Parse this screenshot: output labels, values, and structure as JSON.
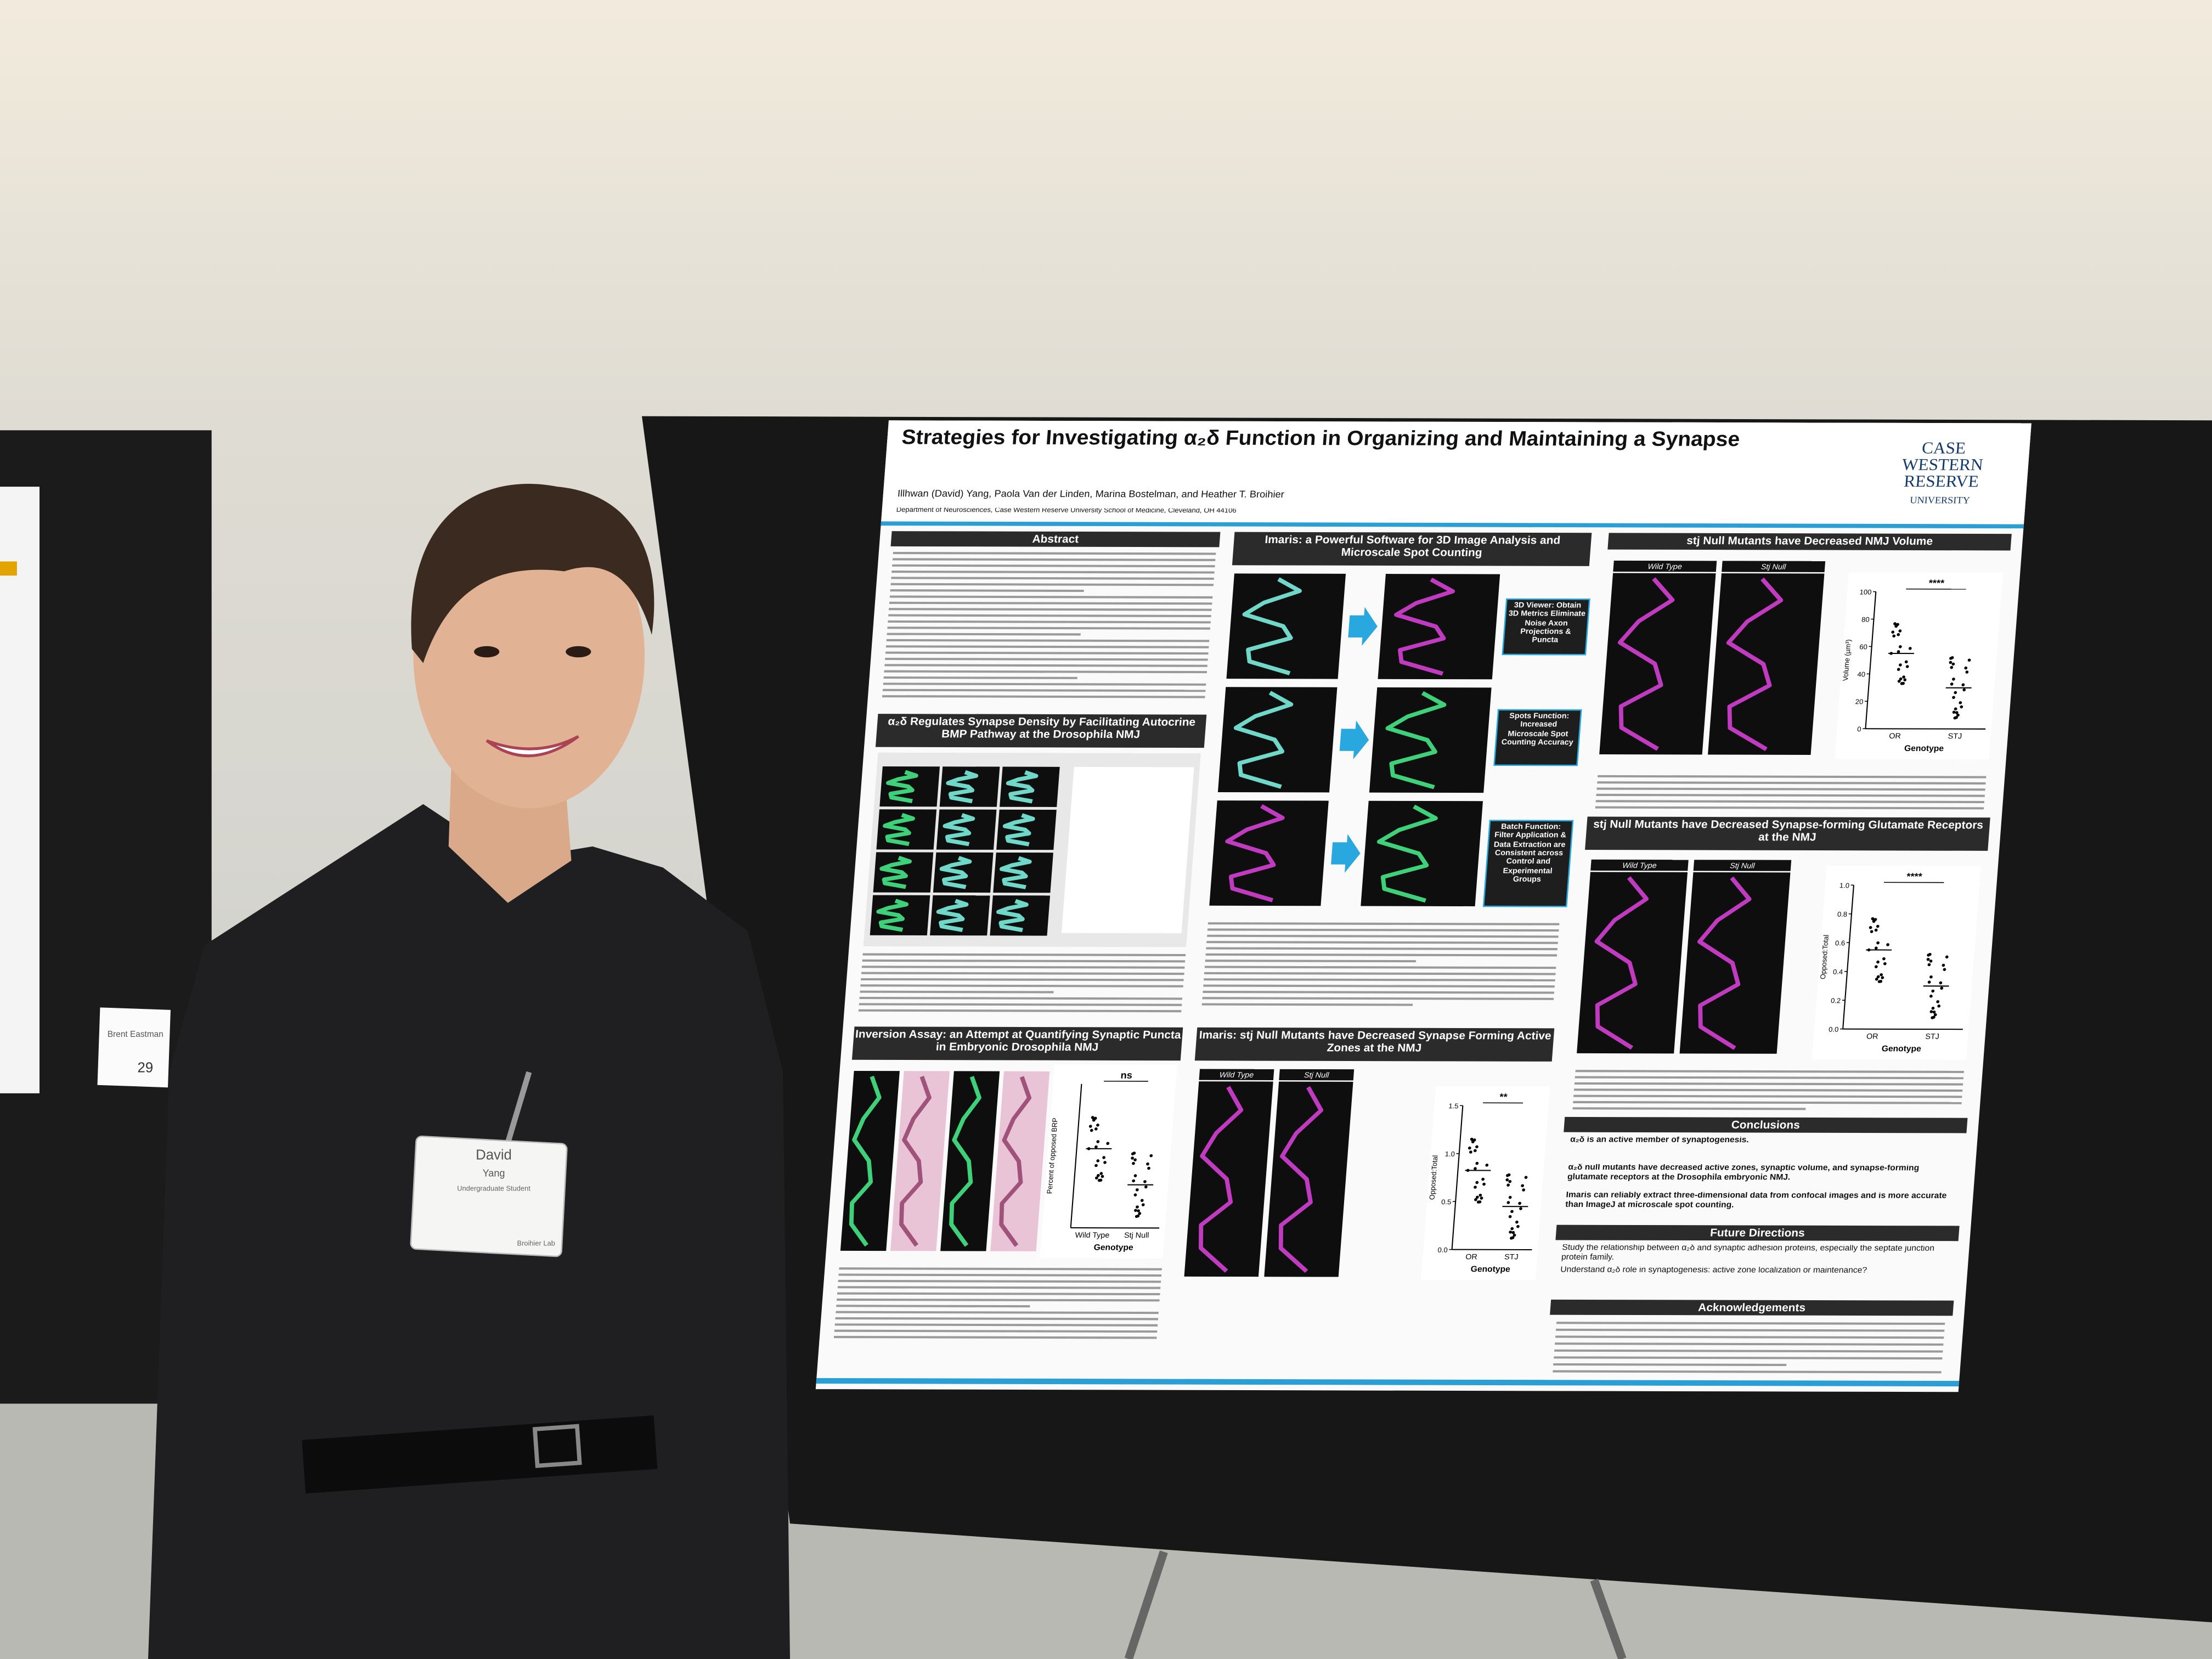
{
  "poster": {
    "title": "Strategies for Investigating α₂δ Function in Organizing and Maintaining a Synapse",
    "authors": "Illhwan (David) Yang, Paola Van der Linden, Marina Bostelman, and Heather T. Broihier",
    "affiliation": "Department of Neurosciences, Case Western Reserve University School of Medicine, Cleveland, OH 44106",
    "logo": [
      "CASE",
      "WESTERN",
      "RESERVE",
      "UNIVERSITY"
    ],
    "sections": {
      "abstract": "Abstract",
      "bmp": "α₂δ Regulates Synapse Density by Facilitating Autocrine BMP Pathway at the Drosophila NMJ",
      "imaris": "Imaris: a Powerful Software for 3D Image Analysis and Microscale Spot Counting",
      "volume": "stj Null Mutants have Decreased NMJ Volume",
      "glutamate": "stj Null Mutants have Decreased Synapse-forming Glutamate Receptors at the NMJ",
      "inversion": "Inversion Assay: an Attempt at Quantifying Synaptic Puncta in Embryonic Drosophila NMJ",
      "active_zones": "Imaris: stj Null Mutants have Decreased Synapse Forming Active Zones at the NMJ",
      "conclusions": "Conclusions",
      "future": "Future Directions",
      "acknowledgements": "Acknowledgements"
    },
    "callouts": [
      "3D Viewer: Obtain 3D Metrics Eliminate Noise Axon Projections & Puncta",
      "Spots Function: Increased Microscale Spot Counting Accuracy",
      "Batch Function: Filter Application & Data Extraction are Consistent across Control and Experimental Groups"
    ],
    "conclusions": [
      "α₂δ is an active member of synaptogenesis.",
      "α₂δ null mutants have decreased active zones, synaptic volume, and synapse-forming glutamate receptors at the Drosophila embryonic NMJ.",
      "Imaris can reliably extract three-dimensional data from confocal images and is more accurate than ImageJ at microscale spot counting."
    ],
    "future": [
      "Study the relationship between α₂δ and synaptic adhesion proteins, especially the septate junction protein family.",
      "Understand α₂δ role in synaptogenesis: active zone localization or maintenance?"
    ],
    "panel_labels": [
      "Wild Type",
      "Stj Null"
    ],
    "plots": {
      "volume": {
        "ylabel": "Volume (µm³)",
        "yticks": [
          "0",
          "20",
          "40",
          "60",
          "80",
          "100"
        ],
        "categories": [
          "OR",
          "STJ"
        ],
        "xlabel": "Genotype",
        "sig": "****"
      },
      "glutamate": {
        "ylabel": "Opposed:Total",
        "yticks": [
          "0.0",
          "0.2",
          "0.4",
          "0.6",
          "0.8",
          "1.0"
        ],
        "categories": [
          "OR",
          "STJ"
        ],
        "xlabel": "Genotype",
        "sig": "****"
      },
      "active_zones": {
        "ylabel": "Opposed:Total",
        "yticks": [
          "0.0",
          "0.5",
          "1.0",
          "1.5"
        ],
        "categories": [
          "OR",
          "STJ"
        ],
        "xlabel": "Genotype",
        "sig": "**"
      },
      "inversion": {
        "ylabel": "Percent of opposed BRP",
        "categories": [
          "Wild Type",
          "Stj Null"
        ],
        "xlabel": "Genotype",
        "sig": "ns"
      }
    }
  },
  "badge": {
    "name": "David",
    "surname": "Yang",
    "role": "Undergraduate Student",
    "lab": "Broihier Lab"
  },
  "sign": {
    "name": "Brent Eastman",
    "number": "29"
  }
}
